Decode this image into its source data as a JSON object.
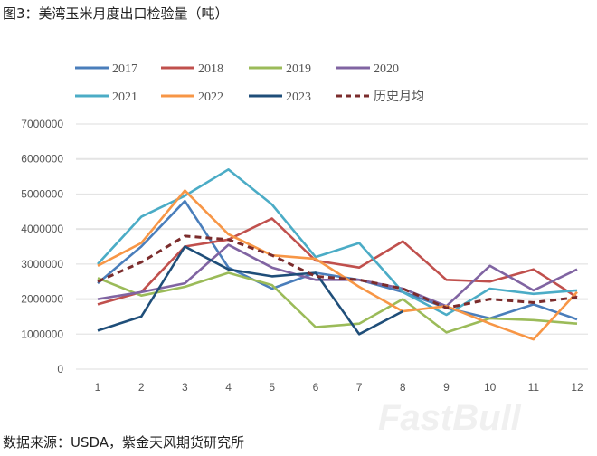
{
  "title": "图3：美湾玉米月度出口检验量（吨）",
  "source": "数据来源：USDA，紫金天风期货研究所",
  "watermark": "FastBull",
  "chart_data": {
    "type": "line",
    "title": "",
    "xlabel": "",
    "ylabel": "",
    "x": [
      1,
      2,
      3,
      4,
      5,
      6,
      7,
      8,
      9,
      10,
      11,
      12
    ],
    "ylim": [
      0,
      7000000
    ],
    "yticks": [
      0,
      1000000,
      2000000,
      3000000,
      4000000,
      5000000,
      6000000,
      7000000
    ],
    "grid": true,
    "legend": "top",
    "series": [
      {
        "name": "2017",
        "color": "#4a7ebb",
        "dashed": false,
        "values": [
          2450000,
          3500000,
          4800000,
          2900000,
          2300000,
          2750000,
          2550000,
          2200000,
          1750000,
          1450000,
          1850000,
          1420000
        ]
      },
      {
        "name": "2018",
        "color": "#c0504d",
        "dashed": false,
        "values": [
          1850000,
          2200000,
          3500000,
          3700000,
          4300000,
          3100000,
          2900000,
          3650000,
          2550000,
          2500000,
          2850000,
          2050000
        ]
      },
      {
        "name": "2019",
        "color": "#9bbb59",
        "dashed": false,
        "values": [
          2600000,
          2100000,
          2350000,
          2750000,
          2400000,
          1200000,
          1300000,
          2000000,
          1050000,
          1450000,
          1400000,
          1300000
        ]
      },
      {
        "name": "2020",
        "color": "#8064a2",
        "dashed": false,
        "values": [
          2000000,
          2200000,
          2450000,
          3550000,
          2900000,
          2550000,
          2550000,
          2300000,
          1800000,
          2950000,
          2250000,
          2850000
        ]
      },
      {
        "name": "2021",
        "color": "#4bacc6",
        "dashed": false,
        "values": [
          3000000,
          4350000,
          4950000,
          5700000,
          4700000,
          3200000,
          3600000,
          2200000,
          1550000,
          2300000,
          2150000,
          2250000
        ]
      },
      {
        "name": "2022",
        "color": "#f79646",
        "dashed": false,
        "values": [
          2950000,
          3600000,
          5100000,
          3850000,
          3250000,
          3150000,
          2350000,
          1650000,
          1800000,
          1300000,
          850000,
          2200000
        ]
      },
      {
        "name": "2023",
        "color": "#1f4e79",
        "dashed": false,
        "values": [
          1100000,
          1500000,
          3500000,
          2850000,
          2650000,
          2750000,
          1000000,
          1650000,
          null,
          null,
          null,
          null
        ]
      },
      {
        "name": "历史月均",
        "color": "#7b2c2c",
        "dashed": true,
        "values": [
          2500000,
          3050000,
          3800000,
          3700000,
          3250000,
          2650000,
          2550000,
          2300000,
          1750000,
          2000000,
          1900000,
          2050000
        ]
      }
    ]
  }
}
